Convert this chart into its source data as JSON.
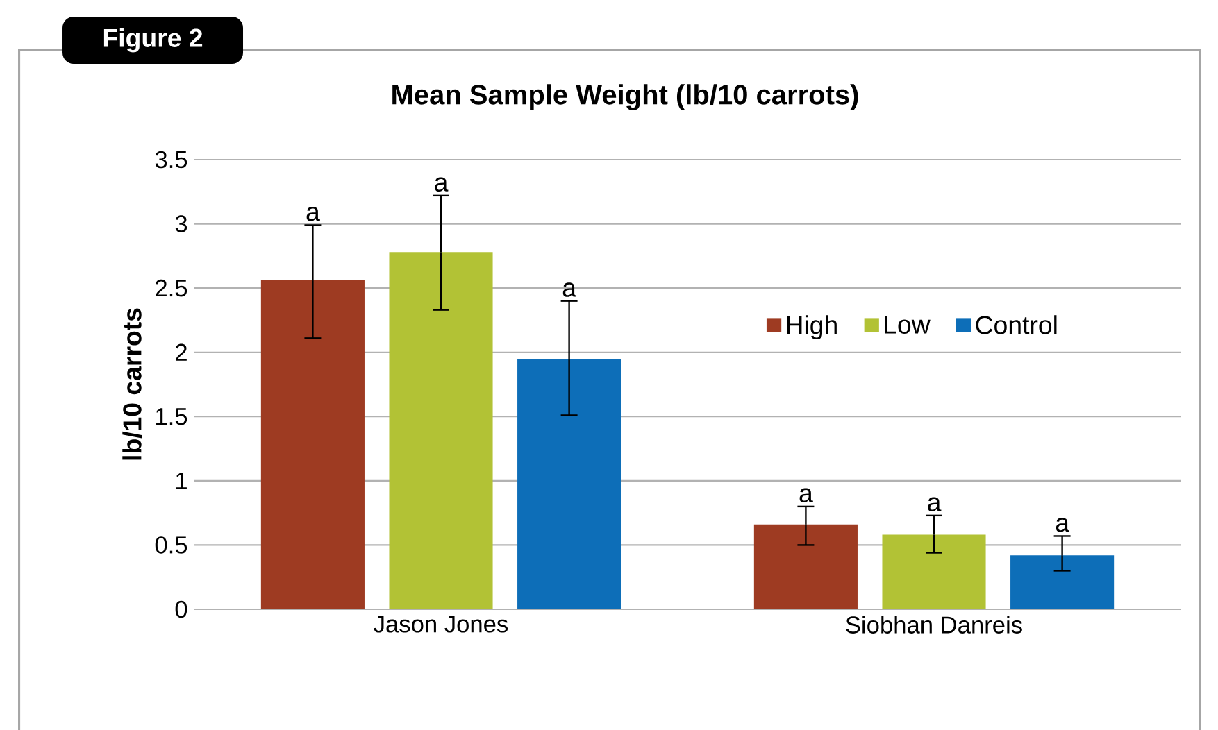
{
  "chart_data": {
    "type": "bar",
    "title": "Mean Sample Weight (lb/10 carrots)",
    "ylabel": "lb/10 carrots",
    "categories": [
      "Jason Jones",
      "Siobhan Danreis"
    ],
    "series": [
      {
        "name": "High",
        "color": "#9e3b22",
        "values": [
          2.56,
          0.66
        ],
        "errors": [
          [
            2.11,
            2.99
          ],
          [
            0.5,
            0.8
          ]
        ]
      },
      {
        "name": "Low",
        "color": "#b2c235",
        "values": [
          2.78,
          0.58
        ],
        "errors": [
          [
            2.33,
            3.22
          ],
          [
            0.44,
            0.73
          ]
        ]
      },
      {
        "name": "Control",
        "color": "#0d6eb8",
        "values": [
          1.95,
          0.42
        ],
        "errors": [
          [
            1.51,
            2.4
          ],
          [
            0.3,
            0.57
          ]
        ]
      }
    ],
    "ylim": [
      0,
      3.5
    ],
    "yticks": [
      0,
      0.5,
      1,
      1.5,
      2,
      2.5,
      3,
      3.5
    ],
    "grid": "y",
    "legend": "right",
    "annotations": [
      "Figure 2",
      "a",
      "a",
      "a",
      "a",
      "a",
      "a"
    ]
  }
}
